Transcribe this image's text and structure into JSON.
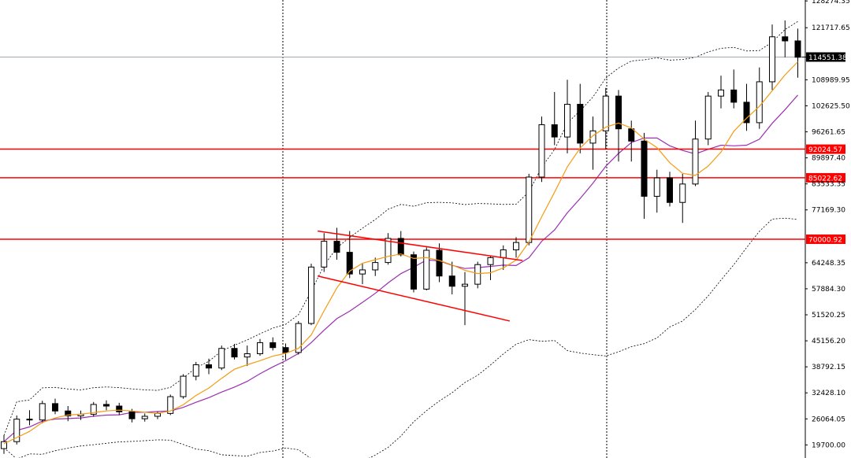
{
  "chart_data": {
    "type": "candlestick",
    "y_axis": {
      "position": "right",
      "range": [
        16500,
        128500
      ],
      "tick_labels": [
        "128274.35",
        "121717.65",
        "114551.38",
        "108989.95",
        "102625.50",
        "96261.65",
        "92024.57",
        "89897.40",
        "85022.62",
        "83533.35",
        "77169.30",
        "70000.92",
        "64248.35",
        "57884.30",
        "51520.25",
        "45156.20",
        "38792.15",
        "32428.10",
        "26064.05",
        "19700.00"
      ]
    },
    "current_price": {
      "value": 114551.38,
      "label": "114551.38"
    },
    "horizontal_levels": [
      {
        "value": 92024.57,
        "label": "92024.57",
        "color": "#ff0000"
      },
      {
        "value": 85022.62,
        "label": "85022.62",
        "color": "#ff0000"
      },
      {
        "value": 70000.92,
        "label": "70000.92",
        "color": "#ff0000"
      }
    ],
    "period_separators": [
      1,
      2
    ],
    "trendlines": [
      {
        "from": [
          24.5,
          72000
        ],
        "to": [
          40.5,
          64800
        ],
        "color": "#ff0000"
      },
      {
        "from": [
          24.5,
          61000
        ],
        "to": [
          39.5,
          50000
        ],
        "color": "#ff0000"
      }
    ],
    "candles": [
      [
        18800,
        22100,
        17500,
        20500
      ],
      [
        20500,
        26900,
        19800,
        26000
      ],
      [
        26000,
        28200,
        24500,
        25800
      ],
      [
        25800,
        30500,
        25000,
        29800
      ],
      [
        29800,
        31000,
        27200,
        28000
      ],
      [
        28000,
        29200,
        25500,
        26800
      ],
      [
        26800,
        28100,
        25800,
        27200
      ],
      [
        27200,
        30200,
        26600,
        29600
      ],
      [
        29600,
        30600,
        28200,
        29200
      ],
      [
        29200,
        30000,
        27000,
        27800
      ],
      [
        27800,
        28500,
        25200,
        26100
      ],
      [
        26100,
        27400,
        25400,
        26700
      ],
      [
        26700,
        27800,
        26000,
        27400
      ],
      [
        27400,
        32000,
        27000,
        31500
      ],
      [
        31500,
        37000,
        31000,
        36500
      ],
      [
        36500,
        40000,
        35500,
        39300
      ],
      [
        39300,
        40800,
        37000,
        38500
      ],
      [
        38500,
        44000,
        38000,
        43300
      ],
      [
        43300,
        44400,
        40600,
        41200
      ],
      [
        41200,
        44000,
        39000,
        42000
      ],
      [
        42000,
        45600,
        41500,
        44700
      ],
      [
        44700,
        46000,
        42800,
        43500
      ],
      [
        43500,
        44500,
        40500,
        42300
      ],
      [
        42300,
        50000,
        41800,
        49400
      ],
      [
        49400,
        64000,
        49000,
        63200
      ],
      [
        63200,
        71500,
        62000,
        69500
      ],
      [
        69500,
        72800,
        65000,
        66800
      ],
      [
        66800,
        72000,
        60500,
        61500
      ],
      [
        61500,
        64000,
        59000,
        62500
      ],
      [
        62500,
        65500,
        61000,
        64300
      ],
      [
        64300,
        71500,
        63800,
        70200
      ],
      [
        70200,
        72000,
        65800,
        66200
      ],
      [
        66200,
        67000,
        57000,
        57800
      ],
      [
        57800,
        68000,
        57500,
        67300
      ],
      [
        67300,
        69000,
        59500,
        61000
      ],
      [
        61000,
        64500,
        56500,
        58500
      ],
      [
        58500,
        62000,
        49000,
        59000
      ],
      [
        59000,
        64500,
        58000,
        63800
      ],
      [
        63800,
        66000,
        60000,
        65500
      ],
      [
        65500,
        68500,
        62500,
        67400
      ],
      [
        67400,
        70500,
        65500,
        69200
      ],
      [
        69200,
        86000,
        68500,
        85200
      ],
      [
        85200,
        100000,
        84000,
        98000
      ],
      [
        98000,
        106000,
        93000,
        95000
      ],
      [
        95000,
        109000,
        91000,
        103000
      ],
      [
        103000,
        108000,
        91000,
        93500
      ],
      [
        93500,
        100000,
        87000,
        96500
      ],
      [
        96500,
        107000,
        92000,
        105000
      ],
      [
        105000,
        106500,
        89000,
        97000
      ],
      [
        97000,
        99000,
        89000,
        94000
      ],
      [
        94000,
        96000,
        75000,
        80500
      ],
      [
        80500,
        87000,
        76500,
        85000
      ],
      [
        85000,
        86500,
        78000,
        79000
      ],
      [
        79000,
        86000,
        74000,
        83500
      ],
      [
        83500,
        99000,
        83000,
        94500
      ],
      [
        94500,
        106000,
        93000,
        105000
      ],
      [
        105000,
        110000,
        102000,
        106500
      ],
      [
        106500,
        111500,
        102000,
        103500
      ],
      [
        103500,
        108000,
        96500,
        98500
      ],
      [
        98500,
        112000,
        97000,
        108500
      ],
      [
        108500,
        122500,
        106500,
        119500
      ],
      [
        119500,
        123500,
        114500,
        118500
      ],
      [
        118500,
        121500,
        109500,
        114500
      ]
    ],
    "sma_fast": [
      20000,
      21500,
      23000,
      25200,
      26300,
      27000,
      27200,
      27600,
      28000,
      28200,
      28000,
      27700,
      27400,
      28000,
      29500,
      31800,
      33600,
      36000,
      38200,
      39300,
      40300,
      41400,
      42100,
      43300,
      46600,
      52500,
      58100,
      62200,
      64100,
      65000,
      65800,
      66400,
      65300,
      65500,
      64800,
      63700,
      62400,
      61600,
      61800,
      63000,
      64900,
      69300,
      75500,
      81500,
      87700,
      92300,
      95300,
      97400,
      98400,
      97200,
      94500,
      92400,
      88700,
      86100,
      85600,
      87900,
      91300,
      96400,
      99600,
      102500,
      106300,
      110200,
      113400
    ]
  }
}
